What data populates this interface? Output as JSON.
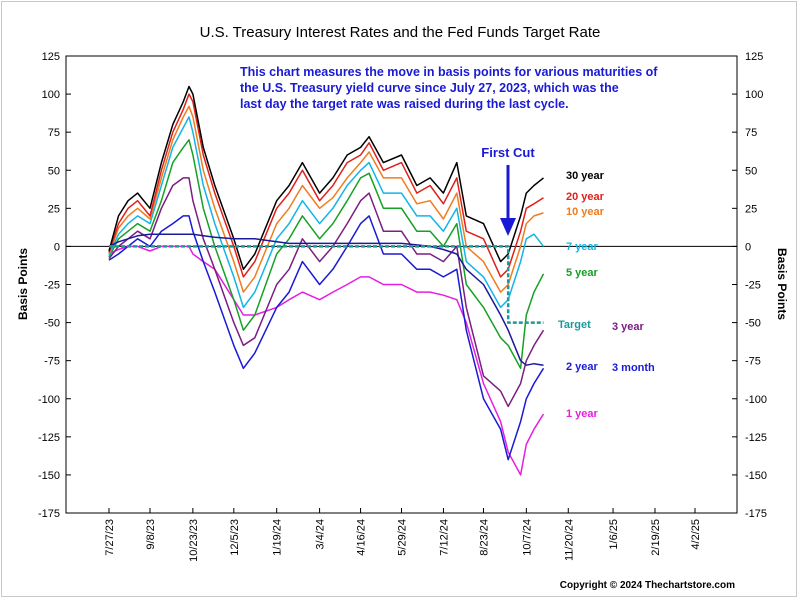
{
  "chart_data": {
    "type": "line",
    "title": "U.S. Treasury Interest Rates and the Fed Funds Target Rate",
    "xlabel": "",
    "ylabel": "Basis Points",
    "ylim": [
      -175,
      125
    ],
    "y_ticks": [
      125,
      100,
      75,
      50,
      25,
      0,
      -25,
      -50,
      -75,
      -100,
      -125,
      -150,
      -175
    ],
    "x_ticks": [
      "7/27/23",
      "9/8/23",
      "10/23/23",
      "12/5/23",
      "1/19/24",
      "3/4/24",
      "4/16/24",
      "5/29/24",
      "7/12/24",
      "8/23/24",
      "10/7/24",
      "11/20/24",
      "1/6/25",
      "2/19/25",
      "4/2/25"
    ],
    "grid": false,
    "zero_line": true,
    "annotation": "This chart measures the move in basis points for various maturities of the U.S. Treasury yield curve since July 27, 2023, which was the last day the target rate was raised during the last cycle.",
    "first_cut": {
      "label": "First Cut",
      "date": "9/18/24"
    },
    "series": [
      {
        "name": "30 year",
        "color": "#000000",
        "dates": [
          "7/27/23",
          "8/6/23",
          "8/16/23",
          "8/26/23",
          "9/8/23",
          "9/20/23",
          "10/2/23",
          "10/13/23",
          "10/19/23",
          "10/23/23",
          "11/3/23",
          "11/15/23",
          "12/5/23",
          "12/15/23",
          "12/27/23",
          "1/19/24",
          "2/1/24",
          "2/15/24",
          "3/4/24",
          "3/18/24",
          "4/2/24",
          "4/16/24",
          "4/25/24",
          "5/10/24",
          "5/29/24",
          "6/14/24",
          "6/28/24",
          "7/12/24",
          "7/26/24",
          "8/5/24",
          "8/23/24",
          "9/10/24",
          "9/18/24",
          "10/1/24",
          "10/7/24",
          "10/15/24",
          "10/25/24"
        ],
        "values": [
          -3,
          20,
          30,
          35,
          25,
          55,
          80,
          95,
          105,
          100,
          65,
          40,
          5,
          -15,
          -5,
          30,
          40,
          55,
          35,
          45,
          60,
          65,
          72,
          55,
          60,
          40,
          45,
          35,
          55,
          20,
          15,
          -10,
          -5,
          20,
          35,
          40,
          45
        ]
      },
      {
        "name": "20 year",
        "color": "#e0201b",
        "dates": [
          "7/27/23",
          "8/6/23",
          "8/16/23",
          "8/26/23",
          "9/8/23",
          "9/20/23",
          "10/2/23",
          "10/13/23",
          "10/19/23",
          "10/23/23",
          "11/3/23",
          "11/15/23",
          "12/5/23",
          "12/15/23",
          "12/27/23",
          "1/19/24",
          "2/1/24",
          "2/15/24",
          "3/4/24",
          "3/18/24",
          "4/2/24",
          "4/16/24",
          "4/25/24",
          "5/10/24",
          "5/29/24",
          "6/14/24",
          "6/28/24",
          "7/12/24",
          "7/26/24",
          "8/5/24",
          "8/23/24",
          "9/10/24",
          "9/18/24",
          "10/1/24",
          "10/7/24",
          "10/15/24",
          "10/25/24"
        ],
        "values": [
          -4,
          15,
          25,
          30,
          20,
          50,
          75,
          90,
          100,
          95,
          60,
          35,
          0,
          -20,
          -10,
          25,
          35,
          50,
          30,
          40,
          55,
          60,
          68,
          50,
          55,
          35,
          40,
          28,
          45,
          10,
          5,
          -20,
          -15,
          10,
          25,
          28,
          32
        ]
      },
      {
        "name": "10 year",
        "color": "#f07c1e",
        "dates": [
          "7/27/23",
          "8/6/23",
          "8/16/23",
          "8/26/23",
          "9/8/23",
          "9/20/23",
          "10/2/23",
          "10/13/23",
          "10/19/23",
          "10/23/23",
          "11/3/23",
          "11/15/23",
          "12/5/23",
          "12/15/23",
          "12/27/23",
          "1/19/24",
          "2/1/24",
          "2/15/24",
          "3/4/24",
          "3/18/24",
          "4/2/24",
          "4/16/24",
          "4/25/24",
          "5/10/24",
          "5/29/24",
          "6/14/24",
          "6/28/24",
          "7/12/24",
          "7/26/24",
          "8/5/24",
          "8/23/24",
          "9/10/24",
          "9/18/24",
          "10/1/24",
          "10/7/24",
          "10/15/24",
          "10/25/24"
        ],
        "values": [
          -5,
          12,
          20,
          25,
          18,
          45,
          70,
          85,
          92,
          85,
          50,
          25,
          -10,
          -30,
          -20,
          15,
          25,
          40,
          25,
          32,
          45,
          55,
          62,
          45,
          45,
          28,
          30,
          18,
          35,
          0,
          -10,
          -30,
          -25,
          0,
          15,
          20,
          22
        ]
      },
      {
        "name": "7 year",
        "color": "#12b5e6",
        "dates": [
          "7/27/23",
          "8/6/23",
          "8/16/23",
          "8/26/23",
          "9/8/23",
          "9/20/23",
          "10/2/23",
          "10/13/23",
          "10/19/23",
          "10/23/23",
          "11/3/23",
          "11/15/23",
          "12/5/23",
          "12/15/23",
          "12/27/23",
          "1/19/24",
          "2/1/24",
          "2/15/24",
          "3/4/24",
          "3/18/24",
          "4/2/24",
          "4/16/24",
          "4/25/24",
          "5/10/24",
          "5/29/24",
          "6/14/24",
          "6/28/24",
          "7/12/24",
          "7/26/24",
          "8/5/24",
          "8/23/24",
          "9/10/24",
          "9/18/24",
          "10/1/24",
          "10/7/24",
          "10/15/24",
          "10/25/24"
        ],
        "values": [
          -6,
          8,
          15,
          20,
          15,
          40,
          65,
          78,
          85,
          75,
          40,
          15,
          -20,
          -40,
          -30,
          5,
          15,
          30,
          15,
          25,
          40,
          50,
          55,
          35,
          35,
          20,
          20,
          10,
          25,
          -10,
          -20,
          -40,
          -35,
          -10,
          5,
          8,
          0
        ]
      },
      {
        "name": "5 year",
        "color": "#17a025",
        "dates": [
          "7/27/23",
          "8/6/23",
          "8/16/23",
          "8/26/23",
          "9/8/23",
          "9/20/23",
          "10/2/23",
          "10/13/23",
          "10/19/23",
          "10/23/23",
          "11/3/23",
          "11/15/23",
          "12/5/23",
          "12/15/23",
          "12/27/23",
          "1/19/24",
          "2/1/24",
          "2/15/24",
          "3/4/24",
          "3/18/24",
          "4/2/24",
          "4/16/24",
          "4/25/24",
          "5/10/24",
          "5/29/24",
          "6/14/24",
          "6/28/24",
          "7/12/24",
          "7/26/24",
          "8/5/24",
          "8/23/24",
          "9/10/24",
          "9/18/24",
          "10/1/24",
          "10/7/24",
          "10/15/24",
          "10/25/24"
        ],
        "values": [
          -7,
          5,
          10,
          15,
          10,
          30,
          55,
          65,
          70,
          60,
          25,
          0,
          -35,
          -55,
          -45,
          -5,
          5,
          20,
          5,
          15,
          30,
          45,
          48,
          25,
          25,
          10,
          10,
          0,
          15,
          -25,
          -40,
          -60,
          -65,
          -80,
          -45,
          -30,
          -18
        ]
      },
      {
        "name": "3 year",
        "color": "#7b1e82",
        "dates": [
          "7/27/23",
          "8/6/23",
          "8/16/23",
          "8/26/23",
          "9/8/23",
          "9/20/23",
          "10/2/23",
          "10/13/23",
          "10/19/23",
          "10/23/23",
          "11/3/23",
          "11/15/23",
          "12/5/23",
          "12/15/23",
          "12/27/23",
          "1/19/24",
          "2/1/24",
          "2/15/24",
          "3/4/24",
          "3/18/24",
          "4/2/24",
          "4/16/24",
          "4/25/24",
          "5/10/24",
          "5/29/24",
          "6/14/24",
          "6/28/24",
          "7/12/24",
          "7/26/24",
          "8/5/24",
          "8/23/24",
          "9/10/24",
          "9/18/24",
          "10/1/24",
          "10/7/24",
          "10/15/24",
          "10/25/24"
        ],
        "values": [
          -8,
          0,
          5,
          10,
          5,
          25,
          40,
          45,
          45,
          30,
          5,
          -15,
          -50,
          -65,
          -60,
          -25,
          -15,
          5,
          -10,
          0,
          15,
          30,
          35,
          10,
          10,
          -5,
          -5,
          -10,
          0,
          -40,
          -85,
          -95,
          -105,
          -90,
          -75,
          -65,
          -55
        ]
      },
      {
        "name": "2 year",
        "color": "#1a1ad6",
        "dates": [
          "7/27/23",
          "8/6/23",
          "8/16/23",
          "8/26/23",
          "9/8/23",
          "9/20/23",
          "10/2/23",
          "10/13/23",
          "10/19/23",
          "10/23/23",
          "11/3/23",
          "11/15/23",
          "12/5/23",
          "12/15/23",
          "12/27/23",
          "1/19/24",
          "2/1/24",
          "2/15/24",
          "3/4/24",
          "3/18/24",
          "4/2/24",
          "4/16/24",
          "4/25/24",
          "5/10/24",
          "5/29/24",
          "6/14/24",
          "6/28/24",
          "7/12/24",
          "7/26/24",
          "8/5/24",
          "8/23/24",
          "9/10/24",
          "9/18/24",
          "10/1/24",
          "10/7/24",
          "10/15/24",
          "10/25/24"
        ],
        "values": [
          -9,
          -5,
          0,
          5,
          0,
          10,
          15,
          20,
          20,
          10,
          -10,
          -30,
          -65,
          -80,
          -70,
          -40,
          -30,
          -10,
          -25,
          -15,
          0,
          15,
          20,
          -5,
          -5,
          -15,
          -15,
          -20,
          -15,
          -55,
          -100,
          -120,
          -140,
          -115,
          -100,
          -90,
          -80
        ]
      },
      {
        "name": "1 year",
        "color": "#e61ee0",
        "dates": [
          "7/27/23",
          "8/6/23",
          "8/16/23",
          "8/26/23",
          "9/8/23",
          "9/20/23",
          "10/2/23",
          "10/13/23",
          "10/19/23",
          "10/23/23",
          "11/3/23",
          "11/15/23",
          "12/5/23",
          "12/15/23",
          "12/27/23",
          "1/19/24",
          "2/1/24",
          "2/15/24",
          "3/4/24",
          "3/18/24",
          "4/2/24",
          "4/16/24",
          "4/25/24",
          "5/10/24",
          "5/29/24",
          "6/14/24",
          "6/28/24",
          "7/12/24",
          "7/26/24",
          "8/5/24",
          "8/23/24",
          "9/10/24",
          "9/18/24",
          "10/1/24",
          "10/7/24",
          "10/15/24",
          "10/25/24"
        ],
        "values": [
          -5,
          -2,
          0,
          0,
          -3,
          0,
          0,
          0,
          0,
          -5,
          -10,
          -15,
          -35,
          -45,
          -45,
          -40,
          -35,
          -30,
          -35,
          -30,
          -25,
          -20,
          -20,
          -25,
          -25,
          -30,
          -30,
          -32,
          -35,
          -50,
          -90,
          -115,
          -135,
          -150,
          -130,
          -120,
          -110
        ]
      },
      {
        "name": "3 month",
        "color": "#1a1a9a",
        "dates": [
          "7/27/23",
          "8/6/23",
          "8/16/23",
          "8/26/23",
          "9/8/23",
          "9/20/23",
          "10/2/23",
          "10/13/23",
          "10/19/23",
          "10/23/23",
          "11/3/23",
          "11/15/23",
          "12/5/23",
          "12/15/23",
          "12/27/23",
          "1/19/24",
          "2/1/24",
          "2/15/24",
          "3/4/24",
          "3/18/24",
          "4/2/24",
          "4/16/24",
          "4/25/24",
          "5/10/24",
          "5/29/24",
          "6/14/24",
          "6/28/24",
          "7/12/24",
          "7/26/24",
          "8/5/24",
          "8/23/24",
          "9/10/24",
          "9/18/24",
          "10/1/24",
          "10/7/24",
          "10/15/24",
          "10/25/24"
        ],
        "values": [
          0,
          3,
          5,
          7,
          8,
          8,
          8,
          8,
          8,
          8,
          7,
          6,
          5,
          5,
          5,
          3,
          2,
          2,
          2,
          2,
          2,
          2,
          2,
          2,
          2,
          1,
          0,
          -2,
          -5,
          -15,
          -25,
          -45,
          -55,
          -75,
          -78,
          -77,
          -78
        ]
      },
      {
        "name": "Target",
        "color": "#1a9a9a",
        "dates": [
          "7/27/23",
          "9/18/24",
          "10/25/24"
        ],
        "values": [
          0,
          -50,
          -50
        ],
        "step": true
      }
    ]
  },
  "labels": {
    "copyright": "Copyright © 2024 Thechartstore.com"
  },
  "label_colors": {
    "30 year": "#000000",
    "20 year": "#e0201b",
    "10 year": "#f07c1e",
    "7 year": "#12b5e6",
    "5 year": "#17a025",
    "3 year": "#7b1e82",
    "2 year": "#1a1ad6",
    "3 month": "#1a1ad6",
    "1 year": "#e61ee0",
    "Target": "#1a9a9a",
    "annotation": "#1a1ad6",
    "first_cut": "#1a1ad6"
  }
}
